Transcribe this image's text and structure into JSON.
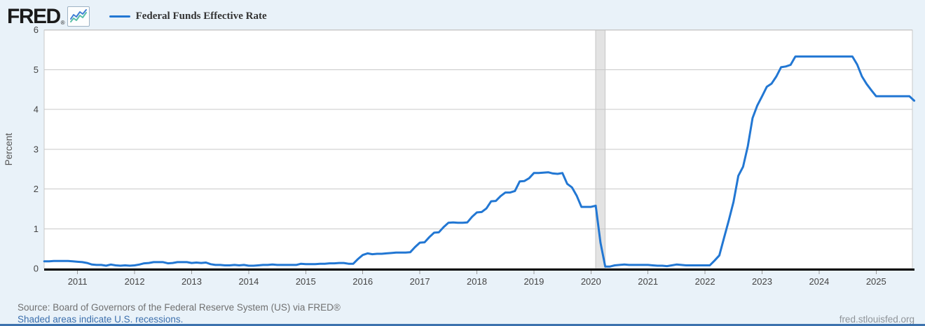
{
  "header": {
    "logo_text": "FRED",
    "logo_reg": "®",
    "legend": {
      "label": "Federal Funds Effective Rate"
    }
  },
  "footer": {
    "source_text": "Source: Board of Governors of the Federal Reserve System (US) via FRED®",
    "recession_note": "Shaded areas indicate U.S. recessions.",
    "site_link": "fred.stlouisfed.org"
  },
  "colors": {
    "line": "#2277d3",
    "background": "#e9f2f9",
    "plot_background": "#ffffff",
    "gridline": "#c9c9c9",
    "axis": "#000000",
    "tick_text": "#444444",
    "recession_band": "#e3e3e3",
    "recession_band_edge": "#c6c6c6",
    "link": "#3b6fad",
    "bottom_bar": "#3c72ae",
    "logo_icon_blue": "#3f7fd4",
    "logo_icon_teal": "#5bbfa9"
  },
  "chart_data": {
    "type": "line",
    "title": "Federal Funds Effective Rate",
    "xlabel": "",
    "ylabel": "Percent",
    "ylim": [
      0,
      6
    ],
    "yticks": [
      0,
      1,
      2,
      3,
      4,
      5,
      6
    ],
    "xticks": [
      2011,
      2012,
      2013,
      2014,
      2015,
      2016,
      2017,
      2018,
      2019,
      2020,
      2021,
      2022,
      2023,
      2024,
      2025
    ],
    "grid": "horizontal",
    "legend_position": "top-left",
    "recessions": [
      {
        "start": "2020-02",
        "end": "2020-04"
      }
    ],
    "series": [
      {
        "name": "Federal Funds Effective Rate",
        "units": "Percent",
        "frequency": "monthly",
        "start": "2010-06",
        "end": "2025-09",
        "values": [
          0.18,
          0.18,
          0.19,
          0.19,
          0.19,
          0.19,
          0.18,
          0.17,
          0.16,
          0.14,
          0.1,
          0.09,
          0.09,
          0.07,
          0.1,
          0.08,
          0.07,
          0.08,
          0.07,
          0.08,
          0.1,
          0.13,
          0.14,
          0.16,
          0.16,
          0.16,
          0.13,
          0.14,
          0.16,
          0.16,
          0.16,
          0.14,
          0.15,
          0.14,
          0.15,
          0.11,
          0.09,
          0.09,
          0.08,
          0.08,
          0.09,
          0.08,
          0.09,
          0.07,
          0.07,
          0.08,
          0.09,
          0.09,
          0.1,
          0.09,
          0.09,
          0.09,
          0.09,
          0.09,
          0.12,
          0.11,
          0.11,
          0.11,
          0.12,
          0.12,
          0.13,
          0.13,
          0.14,
          0.14,
          0.12,
          0.12,
          0.24,
          0.34,
          0.38,
          0.36,
          0.37,
          0.37,
          0.38,
          0.39,
          0.4,
          0.4,
          0.4,
          0.41,
          0.54,
          0.65,
          0.66,
          0.79,
          0.9,
          0.91,
          1.04,
          1.15,
          1.16,
          1.15,
          1.15,
          1.16,
          1.3,
          1.41,
          1.42,
          1.51,
          1.69,
          1.7,
          1.82,
          1.91,
          1.91,
          1.95,
          2.19,
          2.2,
          2.27,
          2.4,
          2.4,
          2.41,
          2.42,
          2.39,
          2.38,
          2.4,
          2.13,
          2.04,
          1.83,
          1.55,
          1.55,
          1.55,
          1.58,
          0.65,
          0.05,
          0.05,
          0.08,
          0.09,
          0.1,
          0.09,
          0.09,
          0.09,
          0.09,
          0.09,
          0.08,
          0.07,
          0.07,
          0.06,
          0.08,
          0.1,
          0.09,
          0.08,
          0.08,
          0.08,
          0.08,
          0.08,
          0.08,
          0.2,
          0.33,
          0.77,
          1.21,
          1.68,
          2.33,
          2.56,
          3.08,
          3.78,
          4.1,
          4.33,
          4.57,
          4.65,
          4.83,
          5.06,
          5.08,
          5.12,
          5.33,
          5.33,
          5.33,
          5.33,
          5.33,
          5.33,
          5.33,
          5.33,
          5.33,
          5.33,
          5.33,
          5.33,
          5.33,
          5.13,
          4.83,
          4.64,
          4.48,
          4.33,
          4.33,
          4.33,
          4.33,
          4.33,
          4.33,
          4.33,
          4.33,
          4.22
        ]
      }
    ]
  }
}
